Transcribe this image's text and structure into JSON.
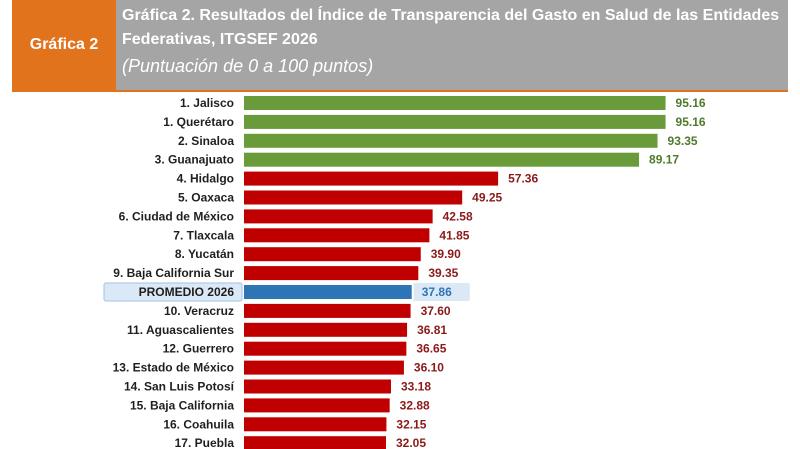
{
  "header": {
    "tag": "Gráfica 2",
    "title": "Gráfica 2. Resultados del Índice de Transparencia del Gasto en Salud de las Entidades Federativas, ITGSEF 2026",
    "subtitle": "(Puntuación de 0 a 100 puntos)"
  },
  "colors": {
    "green": "#6a9b3a",
    "red": "#c00000",
    "blue": "#2e75b6",
    "highlight": "#dbe8f5",
    "orange": "#e2731d",
    "header_gray": "#a5a5a5"
  },
  "chart_data": {
    "type": "bar",
    "orientation": "horizontal",
    "xlim": [
      0,
      100
    ],
    "categories": [
      "1. Jalisco",
      "1. Querétaro",
      "2. Sinaloa",
      "3. Guanajuato",
      "4. Hidalgo",
      "5. Oaxaca",
      "6. Ciudad de México",
      "7. Tlaxcala",
      "8. Yucatán",
      "9. Baja California Sur",
      "PROMEDIO 2026",
      "10. Veracruz",
      "11. Aguascalientes",
      "12. Guerrero",
      "13. Estado de México",
      "14. San Luis Potosí",
      "15. Baja California",
      "16. Coahuila",
      "17. Puebla"
    ],
    "values": [
      95.16,
      95.16,
      93.35,
      89.17,
      57.36,
      49.25,
      42.58,
      41.85,
      39.9,
      39.35,
      37.86,
      37.6,
      36.81,
      36.65,
      36.1,
      33.18,
      32.88,
      32.15,
      32.05
    ],
    "value_labels": [
      "95.16",
      "95.16",
      "93.35",
      "89.17",
      "57.36",
      "49.25",
      "42.58",
      "41.85",
      "39.90",
      "39.35",
      "37.86",
      "37.60",
      "36.81",
      "36.65",
      "36.10",
      "33.18",
      "32.88",
      "32.15",
      "32.05"
    ],
    "bar_colors": [
      "green",
      "green",
      "green",
      "green",
      "red",
      "red",
      "red",
      "red",
      "red",
      "red",
      "blue",
      "red",
      "red",
      "red",
      "red",
      "red",
      "red",
      "red",
      "red"
    ],
    "highlight_category": "PROMEDIO 2026"
  }
}
